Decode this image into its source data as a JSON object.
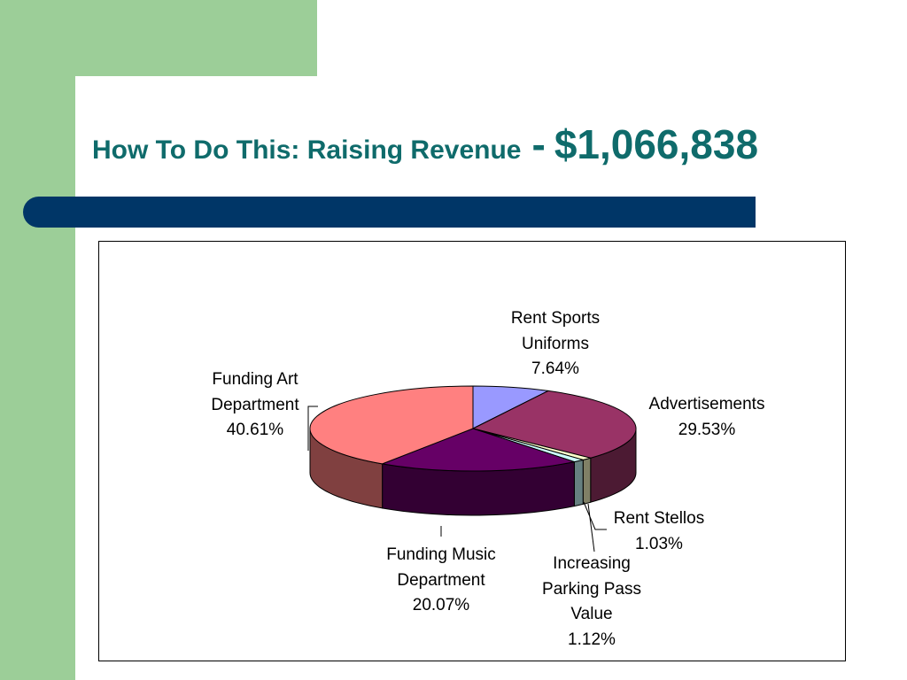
{
  "slide": {
    "title_main": "How To Do This: Raising Revenue",
    "title_sep": "-",
    "title_value": "$1,066,838"
  },
  "colors": {
    "green": "#9cce98",
    "title": "#0f6b6b",
    "navy": "#003667"
  },
  "chart_data": {
    "type": "pie",
    "three_d": true,
    "title": "",
    "slices": [
      {
        "name": "Rent Sports Uniforms",
        "lines": [
          "Rent Sports",
          "Uniforms"
        ],
        "percent": 7.64,
        "label": "7.64%",
        "top_color": "#9999ff",
        "side_color": "#4f4f9a"
      },
      {
        "name": "Advertisements",
        "lines": [
          "Advertisements"
        ],
        "percent": 29.53,
        "label": "29.53%",
        "top_color": "#993366",
        "side_color": "#4c1a33"
      },
      {
        "name": "Rent Stellos",
        "lines": [
          "Rent Stellos"
        ],
        "percent": 1.03,
        "label": "1.03%",
        "top_color": "#ffffcc",
        "side_color": "#808066"
      },
      {
        "name": "Increasing Parking Pass Value",
        "lines": [
          "Increasing",
          "Parking Pass",
          "Value"
        ],
        "percent": 1.12,
        "label": "1.12%",
        "top_color": "#ccffff",
        "side_color": "#668080"
      },
      {
        "name": "Funding Music Department",
        "lines": [
          "Funding Music",
          "Department"
        ],
        "percent": 20.07,
        "label": "20.07%",
        "top_color": "#660066",
        "side_color": "#330033"
      },
      {
        "name": "Funding Art Department",
        "lines": [
          "Funding Art",
          "Department"
        ],
        "percent": 40.61,
        "label": "40.61%",
        "top_color": "#ff8080",
        "side_color": "#804040"
      }
    ]
  }
}
